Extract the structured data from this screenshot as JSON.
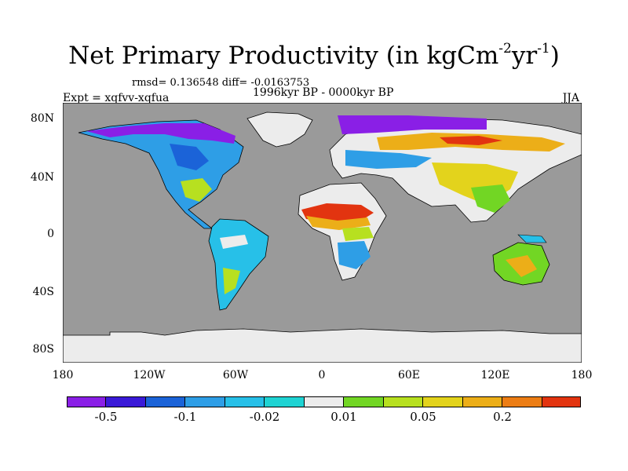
{
  "title": {
    "main": "Net Primary Productivity (in kgCm",
    "exp1": "-2",
    "mid": "yr",
    "exp2": "-1",
    "end": ")"
  },
  "stats_line": "rmsd= 0.136548 diff= -0.0163753",
  "period": "1996kyr BP - 0000kyr BP",
  "experiment": "Expt = xqfvv-xqfua",
  "season": "JJA",
  "lat_labels": [
    "80N",
    "40N",
    "0",
    "40S",
    "80S"
  ],
  "lon_labels": [
    "180",
    "120W",
    "60W",
    "0",
    "60E",
    "120E",
    "180"
  ],
  "colorbar": {
    "colors": [
      "#8a1fe6",
      "#3a1ad8",
      "#1b63d8",
      "#2e9ee6",
      "#27c0e8",
      "#1fd3d3",
      "#ececec",
      "#72d624",
      "#b7e020",
      "#e3d31c",
      "#ecae18",
      "#ec7d14",
      "#e23410"
    ],
    "labels": [
      "-0.5",
      "-0.1",
      "-0.02",
      "0.01",
      "0.05",
      "0.2"
    ]
  },
  "map_colors": {
    "ocean": "#9a9a9a",
    "ice": "#ececec",
    "coast": "#000000"
  }
}
